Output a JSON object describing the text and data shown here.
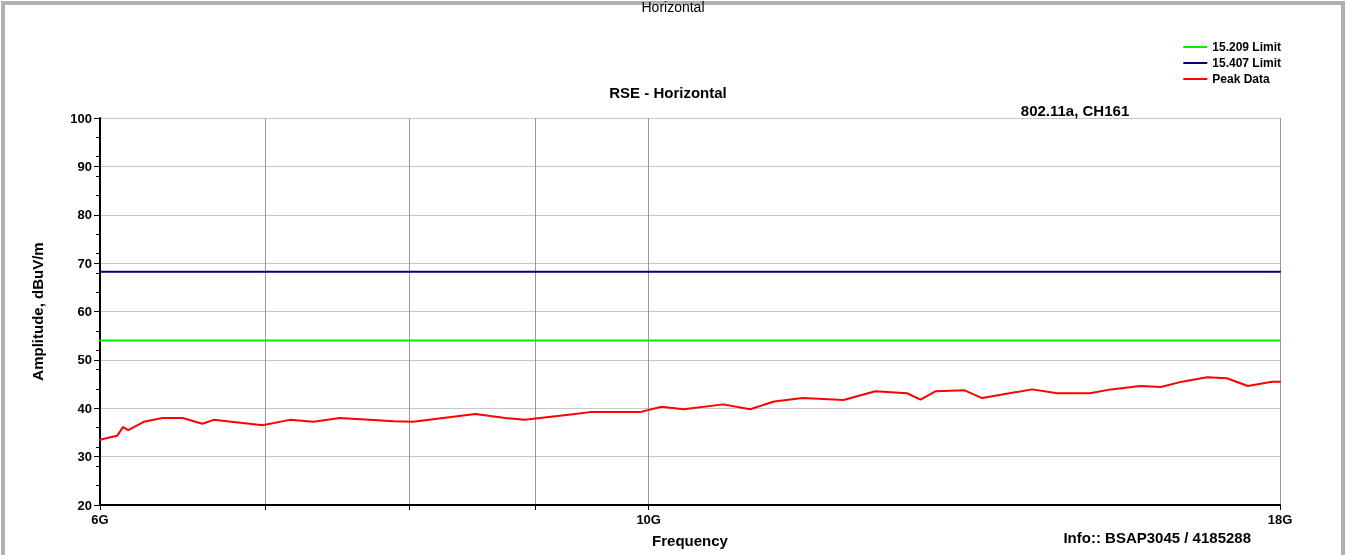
{
  "chart_data": {
    "type": "line",
    "title": "RSE - Horizontal",
    "subtitle": "802.11a, CH161",
    "xlabel": "Frequency",
    "ylabel": "Amplitude, dBuV/m",
    "annotations": [
      "Horizontal",
      "Info:: BSAP3045 / 4185288"
    ],
    "log": "x",
    "grid": true,
    "legend": "top right",
    "marker": "none",
    "line_style": "solid",
    "xlim": [
      6,
      18
    ],
    "xticks": [
      {
        "value": 6,
        "label": "6G"
      },
      {
        "value": 7,
        "label": null
      },
      {
        "value": 8,
        "label": null
      },
      {
        "value": 9,
        "label": null
      },
      {
        "value": 10,
        "label": "10G"
      },
      {
        "value": 18,
        "label": "18G"
      }
    ],
    "ylim": [
      20,
      100
    ],
    "yticks": [
      20,
      30,
      40,
      50,
      60,
      70,
      80,
      90,
      100
    ],
    "series": [
      {
        "name": "15.209 Limit",
        "color": "#00ee00",
        "x": [
          6,
          18
        ],
        "values": [
          54,
          54
        ]
      },
      {
        "name": "15.407 Limit",
        "color": "#000080",
        "x": [
          6,
          18
        ],
        "values": [
          68.2,
          68.2
        ]
      },
      {
        "name": "Peak Data",
        "color": "#ff0000",
        "x": [
          6.0,
          6.096,
          6.13,
          6.16,
          6.25,
          6.36,
          6.48,
          6.6,
          6.67,
          6.98,
          7.16,
          7.32,
          7.5,
          7.89,
          8.03,
          8.51,
          8.75,
          8.91,
          9.3,
          9.47,
          9.92,
          10.12,
          10.33,
          10.72,
          10.99,
          11.24,
          11.54,
          11.99,
          12.35,
          12.72,
          12.88,
          13.06,
          13.42,
          13.64,
          14.29,
          14.63,
          15.08,
          15.38,
          15.8,
          16.11,
          16.43,
          16.82,
          17.13,
          17.47,
          17.88,
          18
        ],
        "values": [
          33.5,
          34.3,
          36.1,
          35.5,
          37.2,
          38.0,
          38.0,
          36.8,
          37.6,
          36.5,
          37.6,
          37.2,
          38.0,
          37.3,
          37.2,
          38.8,
          38.0,
          37.6,
          38.7,
          39.2,
          39.2,
          40.3,
          39.8,
          40.8,
          39.8,
          41.4,
          42.1,
          41.7,
          43.5,
          43.1,
          41.8,
          43.5,
          43.7,
          42.1,
          43.9,
          43.1,
          43.1,
          43.9,
          44.6,
          44.4,
          45.5,
          46.4,
          46.2,
          44.6,
          45.5,
          45.5
        ]
      }
    ]
  }
}
